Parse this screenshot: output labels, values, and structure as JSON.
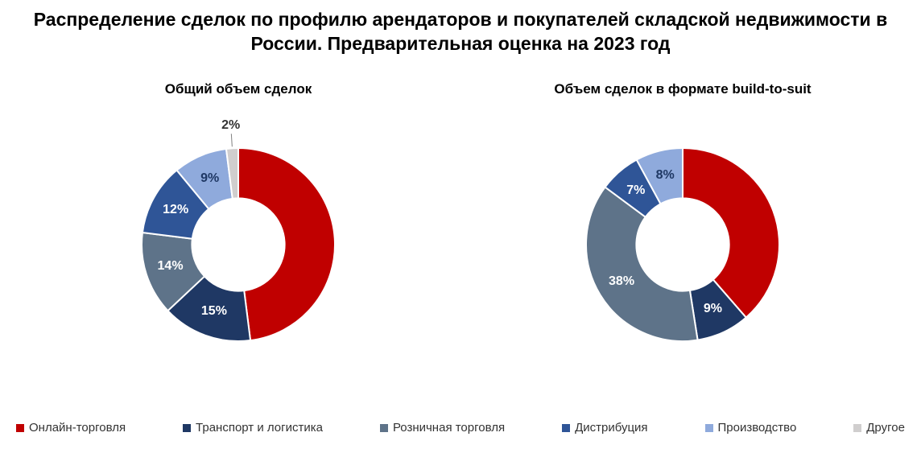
{
  "title": "Распределение сделок по профилю арендаторов и покупателей складской недвижимости в России. Предварительная оценка на 2023 год",
  "background_color": "#ffffff",
  "title_fontsize": 23,
  "title_color": "#000000",
  "legend_fontsize": 15,
  "categories": [
    {
      "key": "online_retail",
      "label": "Онлайн-торговля",
      "color": "#c00000"
    },
    {
      "key": "transport_logistics",
      "label": "Транспорт и логистика",
      "color": "#1f3864"
    },
    {
      "key": "retail",
      "label": "Розничная торговля",
      "color": "#5e7389"
    },
    {
      "key": "distribution",
      "label": "Дистрибуция",
      "color": "#2f5597"
    },
    {
      "key": "manufacturing",
      "label": "Производство",
      "color": "#8faadc"
    },
    {
      "key": "other",
      "label": "Другое",
      "color": "#d0cece"
    }
  ],
  "charts": [
    {
      "title": "Общий объем сделок",
      "title_fontsize": 17,
      "type": "donut",
      "inner_radius_ratio": 0.48,
      "start_angle_deg": 0,
      "slices": [
        {
          "category": "online_retail",
          "value": 48,
          "label": "48%",
          "label_color": "#c00000",
          "label_pos": "inside"
        },
        {
          "category": "transport_logistics",
          "value": 15,
          "label": "15%",
          "label_color": "#ffffff",
          "label_pos": "inside"
        },
        {
          "category": "retail",
          "value": 14,
          "label": "14%",
          "label_color": "#ffffff",
          "label_pos": "inside"
        },
        {
          "category": "distribution",
          "value": 12,
          "label": "12%",
          "label_color": "#ffffff",
          "label_pos": "inside"
        },
        {
          "category": "manufacturing",
          "value": 9,
          "label": "9%",
          "label_color": "#1f3864",
          "label_pos": "inside"
        },
        {
          "category": "other",
          "value": 2,
          "label": "2%",
          "label_color": "#333333",
          "label_pos": "outside"
        }
      ]
    },
    {
      "title": "Объем сделок в формате build-to-suit",
      "title_fontsize": 17,
      "type": "donut",
      "inner_radius_ratio": 0.48,
      "start_angle_deg": 0,
      "slices": [
        {
          "category": "online_retail",
          "value": 39,
          "label": "39%",
          "label_color": "#c00000",
          "label_pos": "inside"
        },
        {
          "category": "transport_logistics",
          "value": 9,
          "label": "9%",
          "label_color": "#ffffff",
          "label_pos": "inside"
        },
        {
          "category": "retail",
          "value": 38,
          "label": "38%",
          "label_color": "#ffffff",
          "label_pos": "inside"
        },
        {
          "category": "distribution",
          "value": 7,
          "label": "7%",
          "label_color": "#ffffff",
          "label_pos": "inside"
        },
        {
          "category": "manufacturing",
          "value": 8,
          "label": "8%",
          "label_color": "#1f3864",
          "label_pos": "inside"
        }
      ]
    }
  ]
}
